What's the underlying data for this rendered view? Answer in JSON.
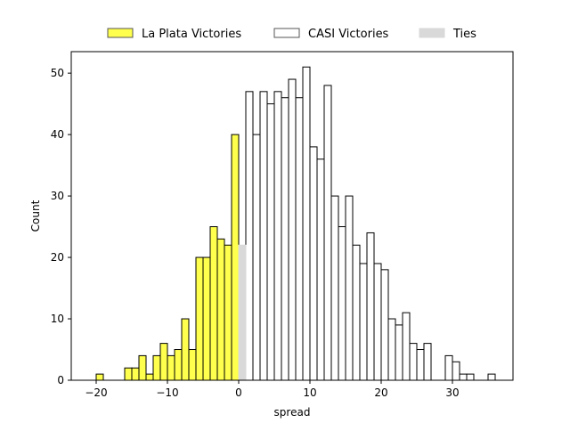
{
  "chart_data": {
    "type": "bar",
    "chart_subtype": "histogram",
    "title": "",
    "xlabel": "spread",
    "ylabel": "Count",
    "xlim": [
      -23.5,
      38.5
    ],
    "ylim": [
      0,
      53.5
    ],
    "x_ticks": [
      -20,
      -10,
      0,
      10,
      20,
      30
    ],
    "y_ticks": [
      0,
      10,
      20,
      30,
      40,
      50
    ],
    "grid": false,
    "legend_position": "top-center, outside plot",
    "bin_width": 1,
    "series": [
      {
        "name": "La Plata Victories",
        "color": "#ffff4d",
        "edge_color": "#000000",
        "bins": [
          {
            "x": -20,
            "count": 1
          },
          {
            "x": -16,
            "count": 2
          },
          {
            "x": -15,
            "count": 2
          },
          {
            "x": -14,
            "count": 4
          },
          {
            "x": -13,
            "count": 1
          },
          {
            "x": -12,
            "count": 4
          },
          {
            "x": -11,
            "count": 6
          },
          {
            "x": -10,
            "count": 4
          },
          {
            "x": -9,
            "count": 5
          },
          {
            "x": -8,
            "count": 10
          },
          {
            "x": -7,
            "count": 5
          },
          {
            "x": -6,
            "count": 20
          },
          {
            "x": -5,
            "count": 20
          },
          {
            "x": -4,
            "count": 25
          },
          {
            "x": -3,
            "count": 23
          },
          {
            "x": -2,
            "count": 22
          },
          {
            "x": -1,
            "count": 40
          }
        ]
      },
      {
        "name": "CASI Victories",
        "color": "#ffffff",
        "edge_color": "#000000",
        "bins": [
          {
            "x": 1,
            "count": 47
          },
          {
            "x": 2,
            "count": 40
          },
          {
            "x": 3,
            "count": 47
          },
          {
            "x": 4,
            "count": 45
          },
          {
            "x": 5,
            "count": 47
          },
          {
            "x": 6,
            "count": 46
          },
          {
            "x": 7,
            "count": 49
          },
          {
            "x": 8,
            "count": 46
          },
          {
            "x": 9,
            "count": 51
          },
          {
            "x": 10,
            "count": 38
          },
          {
            "x": 11,
            "count": 36
          },
          {
            "x": 12,
            "count": 48
          },
          {
            "x": 13,
            "count": 30
          },
          {
            "x": 14,
            "count": 25
          },
          {
            "x": 15,
            "count": 30
          },
          {
            "x": 16,
            "count": 22
          },
          {
            "x": 17,
            "count": 19
          },
          {
            "x": 18,
            "count": 24
          },
          {
            "x": 19,
            "count": 19
          },
          {
            "x": 20,
            "count": 18
          },
          {
            "x": 21,
            "count": 10
          },
          {
            "x": 22,
            "count": 9
          },
          {
            "x": 23,
            "count": 11
          },
          {
            "x": 24,
            "count": 6
          },
          {
            "x": 25,
            "count": 5
          },
          {
            "x": 26,
            "count": 6
          },
          {
            "x": 29,
            "count": 4
          },
          {
            "x": 30,
            "count": 3
          },
          {
            "x": 31,
            "count": 1
          },
          {
            "x": 32,
            "count": 1
          },
          {
            "x": 35,
            "count": 1
          }
        ]
      },
      {
        "name": "Ties",
        "color": "#d9d9d9",
        "edge_color": "#d9d9d9",
        "bins": [
          {
            "x": 0,
            "count": 22
          }
        ]
      }
    ]
  }
}
